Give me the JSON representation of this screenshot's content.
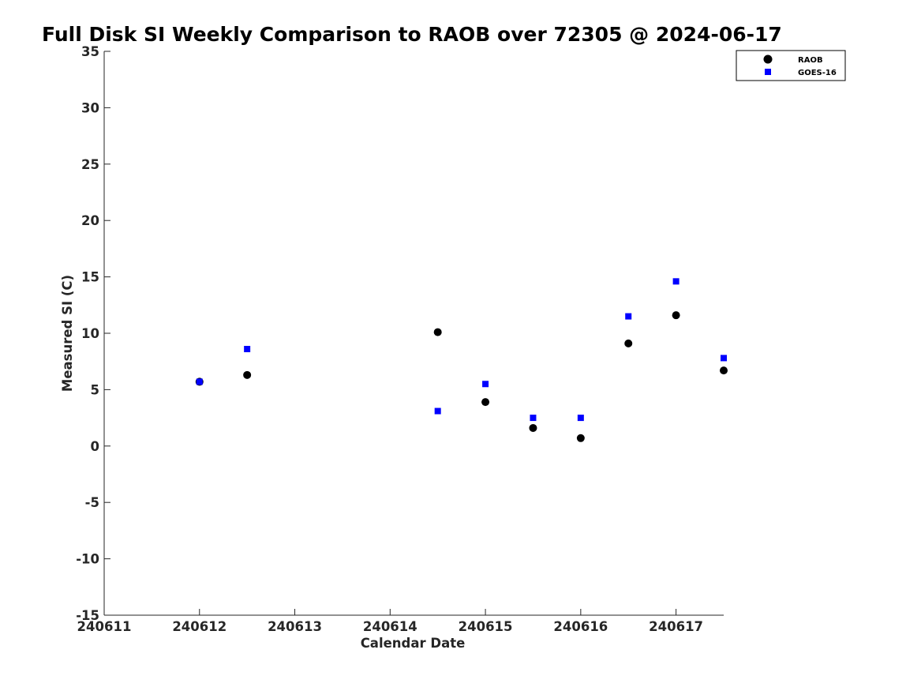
{
  "chart_data": {
    "type": "scatter",
    "title": "Full Disk SI Weekly Comparison to RAOB over 72305 @ 2024-06-17",
    "xlabel": "Calendar Date",
    "ylabel": "Measured SI (C)",
    "xlim": [
      240611,
      240617.5
    ],
    "ylim": [
      -15,
      35
    ],
    "xticks": [
      240611,
      240612,
      240613,
      240614,
      240615,
      240616,
      240617
    ],
    "xtick_labels": [
      "240611",
      "240612",
      "240613",
      "240614",
      "240615",
      "240616",
      "240617"
    ],
    "yticks": [
      -15,
      -10,
      -5,
      0,
      5,
      10,
      15,
      20,
      25,
      30,
      35
    ],
    "ytick_labels": [
      "-15",
      "-10",
      "-5",
      "0",
      "5",
      "10",
      "15",
      "20",
      "25",
      "30",
      "35"
    ],
    "grid": false,
    "legend_position": "top-right",
    "series": [
      {
        "name": "RAOB",
        "marker": "circle",
        "color": "#000000",
        "points": [
          {
            "x": 240612.0,
            "y": 5.7
          },
          {
            "x": 240612.5,
            "y": 6.3
          },
          {
            "x": 240614.5,
            "y": 10.1
          },
          {
            "x": 240615.0,
            "y": 3.9
          },
          {
            "x": 240615.5,
            "y": 1.6
          },
          {
            "x": 240616.0,
            "y": 0.7
          },
          {
            "x": 240616.5,
            "y": 9.1
          },
          {
            "x": 240617.0,
            "y": 11.6
          },
          {
            "x": 240617.5,
            "y": 6.7
          }
        ]
      },
      {
        "name": "GOES-16",
        "marker": "square",
        "color": "#0000ff",
        "points": [
          {
            "x": 240612.0,
            "y": 5.7
          },
          {
            "x": 240612.5,
            "y": 8.6
          },
          {
            "x": 240614.5,
            "y": 3.1
          },
          {
            "x": 240615.0,
            "y": 5.5
          },
          {
            "x": 240615.5,
            "y": 2.5
          },
          {
            "x": 240616.0,
            "y": 2.5
          },
          {
            "x": 240616.5,
            "y": 11.5
          },
          {
            "x": 240617.0,
            "y": 14.6
          },
          {
            "x": 240617.5,
            "y": 7.8
          }
        ]
      }
    ]
  }
}
